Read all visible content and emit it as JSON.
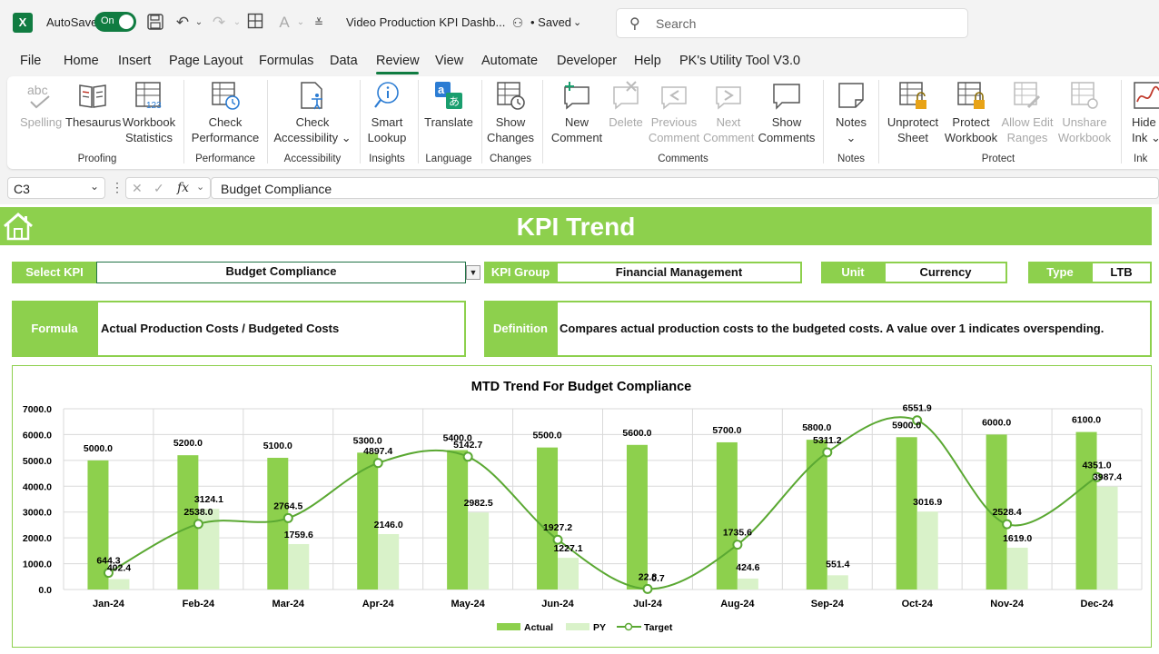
{
  "titlebar": {
    "app_icon": "X",
    "autosave_label": "AutoSave",
    "autosave_state": "On",
    "doc_title": "Video Production KPI Dashb...",
    "saved_status": "• Saved",
    "search_placeholder": "Search"
  },
  "menu": [
    "File",
    "Home",
    "Insert",
    "Page Layout",
    "Formulas",
    "Data",
    "Review",
    "View",
    "Automate",
    "Developer",
    "Help",
    "PK's Utility Tool V3.0"
  ],
  "menu_active": "Review",
  "ribbon": {
    "buttons": [
      {
        "l1": "Spelling",
        "l2": "",
        "icon": "spelling-icon",
        "dim": true
      },
      {
        "l1": "Thesaurus",
        "l2": "",
        "icon": "thesaurus-icon",
        "dim": false
      },
      {
        "l1": "Workbook",
        "l2": "Statistics",
        "icon": "workbook-statistics-icon",
        "dim": false
      },
      {
        "l1": "Check",
        "l2": "Performance",
        "icon": "check-performance-icon",
        "dim": false
      },
      {
        "l1": "Check",
        "l2": "Accessibility ⌄",
        "icon": "check-accessibility-icon",
        "dim": false
      },
      {
        "l1": "Smart",
        "l2": "Lookup",
        "icon": "smart-lookup-icon",
        "dim": false
      },
      {
        "l1": "Translate",
        "l2": "",
        "icon": "translate-icon",
        "dim": false
      },
      {
        "l1": "Show",
        "l2": "Changes",
        "icon": "show-changes-icon",
        "dim": false
      },
      {
        "l1": "New",
        "l2": "Comment",
        "icon": "new-comment-icon",
        "dim": false
      },
      {
        "l1": "Delete",
        "l2": "",
        "icon": "delete-comment-icon",
        "dim": true
      },
      {
        "l1": "Previous",
        "l2": "Comment",
        "icon": "previous-comment-icon",
        "dim": true
      },
      {
        "l1": "Next",
        "l2": "Comment",
        "icon": "next-comment-icon",
        "dim": true
      },
      {
        "l1": "Show",
        "l2": "Comments",
        "icon": "show-comments-icon",
        "dim": false
      },
      {
        "l1": "Notes",
        "l2": "⌄",
        "icon": "notes-icon",
        "dim": false
      },
      {
        "l1": "Unprotect",
        "l2": "Sheet",
        "icon": "unprotect-sheet-icon",
        "dim": false
      },
      {
        "l1": "Protect",
        "l2": "Workbook",
        "icon": "protect-workbook-icon",
        "dim": false
      },
      {
        "l1": "Allow Edit",
        "l2": "Ranges",
        "icon": "allow-edit-ranges-icon",
        "dim": true
      },
      {
        "l1": "Unshare",
        "l2": "Workbook",
        "icon": "unshare-workbook-icon",
        "dim": true
      },
      {
        "l1": "Hide",
        "l2": "Ink ⌄",
        "icon": "hide-ink-icon",
        "dim": false
      }
    ],
    "groups": [
      "Proofing",
      "Performance",
      "Accessibility",
      "Insights",
      "Language",
      "Changes",
      "Comments",
      "Notes",
      "Protect",
      "Ink"
    ]
  },
  "formula_bar": {
    "name_box": "C3",
    "fx": "fx",
    "value": "Budget Compliance"
  },
  "dashboard": {
    "title": "KPI Trend",
    "select_kpi_label": "Select KPI",
    "select_kpi_value": "Budget Compliance",
    "kpi_group_label": "KPI Group",
    "kpi_group_value": "Financial Management",
    "unit_label": "Unit",
    "unit_value": "Currency",
    "type_label": "Type",
    "type_value": "LTB",
    "formula_label": "Formula",
    "formula_value": "Actual Production Costs / Budgeted Costs",
    "definition_label": "Definition",
    "definition_value": "Compares actual production costs to the budgeted costs. A value over 1 indicates overspending."
  },
  "colors": {
    "accent": "#8dd04d",
    "actual": "#8dd04d",
    "py": "#d9f2c9",
    "target": "#5aa832",
    "excel_green": "#107c41"
  },
  "chart_data": {
    "type": "bar",
    "title": "MTD Trend For Budget Compliance",
    "categories": [
      "Jan-24",
      "Feb-24",
      "Mar-24",
      "Apr-24",
      "May-24",
      "Jun-24",
      "Jul-24",
      "Aug-24",
      "Sep-24",
      "Oct-24",
      "Nov-24",
      "Dec-24"
    ],
    "series": [
      {
        "name": "Actual",
        "type": "bar",
        "values": [
          5000.0,
          5200.0,
          5100.0,
          5300.0,
          5400.0,
          5500.0,
          5600.0,
          5700.0,
          5800.0,
          5900.0,
          6000.0,
          6100.0
        ]
      },
      {
        "name": "PY",
        "type": "bar",
        "values": [
          402.4,
          3124.1,
          1759.6,
          2146.0,
          2982.5,
          1227.1,
          0.7,
          424.6,
          551.4,
          3016.9,
          1619.0,
          3987.4
        ]
      },
      {
        "name": "Target",
        "type": "line",
        "values": [
          644.3,
          2538.0,
          2764.5,
          4897.4,
          5142.7,
          1927.2,
          22.8,
          1735.6,
          5311.2,
          6551.9,
          2528.4,
          4351.0
        ]
      }
    ],
    "ylim": [
      0,
      7000
    ],
    "yticks": [
      "0.0",
      "1000.0",
      "2000.0",
      "3000.0",
      "4000.0",
      "5000.0",
      "6000.0",
      "7000.0"
    ],
    "grid": true,
    "legend": "bottom"
  }
}
